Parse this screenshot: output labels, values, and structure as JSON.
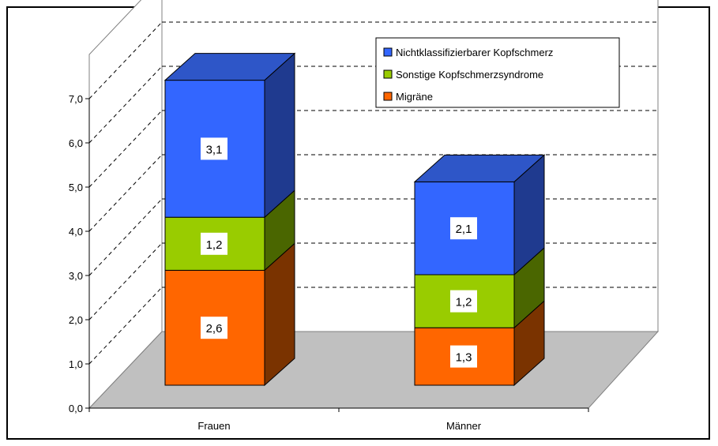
{
  "chart_data": {
    "type": "bar",
    "stacked": true,
    "three_d": true,
    "categories": [
      "Frauen",
      "Männer"
    ],
    "series": [
      {
        "name": "Migräne",
        "values": [
          2.6,
          1.3
        ],
        "labels": [
          "2,6",
          "1,3"
        ],
        "color": "#ff6600"
      },
      {
        "name": "Sonstige Kopfschmerzsyndrome",
        "values": [
          1.2,
          1.2
        ],
        "labels": [
          "1,2",
          "1,2"
        ],
        "color": "#99cc00"
      },
      {
        "name": "Nichtklassifizierbarer Kopfschmerz",
        "values": [
          3.1,
          2.1
        ],
        "labels": [
          "3,1",
          "2,1"
        ],
        "color": "#3366ff"
      }
    ],
    "side_colors": [
      "#7a3300",
      "#4a6600",
      "#1f3a8f"
    ],
    "ylim": [
      0,
      7
    ],
    "yticks": [
      "0,0",
      "1,0",
      "2,0",
      "3,0",
      "4,0",
      "5,0",
      "6,0",
      "7,0"
    ],
    "legend": {
      "position": "top-right",
      "entries": [
        "Nichtklassifizierbarer Kopfschmerz",
        "Sonstige Kopfschmerzsyndrome",
        "Migräne"
      ],
      "colors": [
        "#3366ff",
        "#99cc00",
        "#ff6600"
      ]
    },
    "grid": true,
    "floor_color": "#c0c0c0",
    "title": "",
    "xlabel": "",
    "ylabel": ""
  }
}
